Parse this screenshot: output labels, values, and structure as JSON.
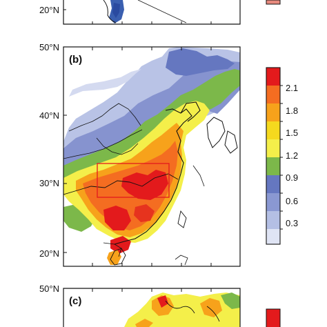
{
  "panels": [
    {
      "label": "",
      "lat_labels": [
        "20°N"
      ]
    },
    {
      "label": "(b)",
      "lat_labels": [
        "50°N",
        "40°N",
        "30°N",
        "20°N"
      ]
    },
    {
      "label": "(c)",
      "lat_labels": [
        "50°N"
      ]
    }
  ],
  "colorbar": {
    "ticks": [
      "2.1",
      "1.8",
      "1.5",
      "1.2",
      "0.9",
      "0.6",
      "0.3"
    ],
    "colors": [
      "#e31a1c",
      "#f46d21",
      "#f7a21b",
      "#f5d91e",
      "#f4ef4a",
      "#7cb84a",
      "#6577c0",
      "#8a98d2",
      "#b4bfe4",
      "#dfe4f4"
    ]
  }
}
